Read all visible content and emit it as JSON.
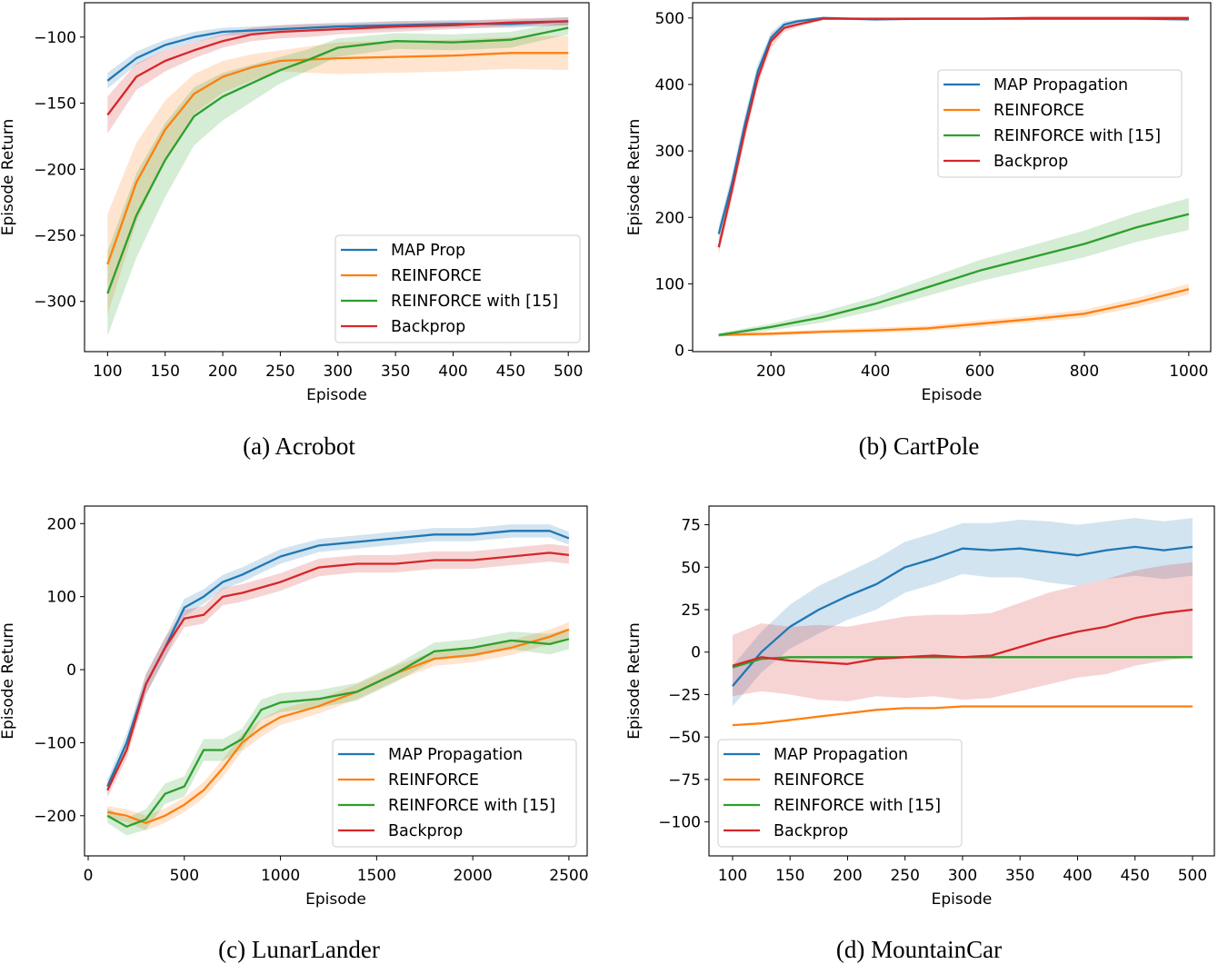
{
  "colors": {
    "MAP": "#1f77b4",
    "REINFORCE": "#ff7f0e",
    "R15": "#2ca02c",
    "Backprop": "#d62728"
  },
  "chart_data": [
    {
      "type": "line",
      "caption": "(a) Acrobot",
      "xlabel": "Episode",
      "ylabel": "Episode Return",
      "xlim": [
        80,
        518
      ],
      "ylim": [
        -338,
        -74
      ],
      "xticks": [
        100,
        150,
        200,
        250,
        300,
        350,
        400,
        450,
        500
      ],
      "yticks": [
        -300,
        -250,
        -200,
        -150,
        -100
      ],
      "grid": false,
      "legend_placement": "bottom-right",
      "series": [
        {
          "name": "MAP Prop",
          "key": "MAP",
          "x": [
            100,
            125,
            150,
            175,
            200,
            225,
            250,
            275,
            300,
            350,
            400,
            450,
            500
          ],
          "y": [
            -133,
            -116,
            -106,
            -100,
            -96,
            -95,
            -94,
            -93,
            -92,
            -91,
            -90,
            -90,
            -88
          ],
          "band": [
            6,
            5,
            4,
            4,
            3,
            3,
            3,
            3,
            3,
            3,
            3,
            3,
            3
          ]
        },
        {
          "name": "REINFORCE",
          "key": "REINFORCE",
          "x": [
            100,
            125,
            150,
            175,
            200,
            225,
            250,
            275,
            300,
            350,
            400,
            450,
            500
          ],
          "y": [
            -272,
            -210,
            -170,
            -143,
            -130,
            -123,
            -118,
            -117,
            -116,
            -115,
            -114,
            -112,
            -112
          ],
          "band": [
            38,
            30,
            22,
            15,
            12,
            10,
            8,
            10,
            12,
            12,
            12,
            12,
            13
          ]
        },
        {
          "name": "REINFORCE with [15]",
          "key": "R15",
          "x": [
            100,
            125,
            150,
            175,
            200,
            225,
            250,
            275,
            300,
            350,
            400,
            450,
            500
          ],
          "y": [
            -294,
            -235,
            -193,
            -160,
            -145,
            -135,
            -125,
            -117,
            -108,
            -103,
            -104,
            -102,
            -93
          ],
          "band": [
            32,
            32,
            28,
            22,
            18,
            14,
            10,
            8,
            7,
            6,
            6,
            6,
            5
          ]
        },
        {
          "name": "Backprop",
          "key": "Backprop",
          "x": [
            100,
            125,
            150,
            175,
            200,
            225,
            250,
            275,
            300,
            350,
            400,
            450,
            500
          ],
          "y": [
            -159,
            -130,
            -118,
            -110,
            -103,
            -98,
            -96,
            -95,
            -94,
            -92,
            -91,
            -89,
            -88
          ],
          "band": [
            14,
            10,
            8,
            6,
            5,
            5,
            5,
            5,
            4,
            4,
            3,
            3,
            3
          ]
        }
      ]
    },
    {
      "type": "line",
      "caption": "(b) CartPole",
      "xlabel": "Episode",
      "ylabel": "Episode Return",
      "xlim": [
        50,
        1042
      ],
      "ylim": [
        -2,
        523
      ],
      "xticks": [
        200,
        400,
        600,
        800,
        1000
      ],
      "yticks": [
        0,
        100,
        200,
        300,
        400,
        500
      ],
      "grid": false,
      "legend_placement": "upper-right",
      "series": [
        {
          "name": "MAP Propagation",
          "key": "MAP",
          "x": [
            100,
            125,
            150,
            175,
            200,
            225,
            250,
            300,
            400,
            500,
            600,
            700,
            800,
            900,
            1000
          ],
          "y": [
            175,
            250,
            340,
            420,
            470,
            490,
            495,
            500,
            498,
            499,
            499,
            499,
            499,
            499,
            498
          ],
          "band": [
            12,
            14,
            14,
            12,
            8,
            5,
            3,
            2,
            2,
            2,
            2,
            2,
            2,
            2,
            2
          ]
        },
        {
          "name": "REINFORCE",
          "key": "REINFORCE",
          "x": [
            100,
            200,
            300,
            400,
            500,
            600,
            700,
            800,
            900,
            1000
          ],
          "y": [
            23,
            25,
            28,
            30,
            33,
            40,
            47,
            55,
            72,
            92
          ],
          "band": [
            2,
            3,
            3,
            4,
            4,
            5,
            5,
            6,
            7,
            8
          ]
        },
        {
          "name": "REINFORCE with [15]",
          "key": "R15",
          "x": [
            100,
            200,
            300,
            400,
            500,
            600,
            700,
            800,
            900,
            1000
          ],
          "y": [
            23,
            35,
            50,
            70,
            95,
            120,
            140,
            160,
            185,
            205
          ],
          "band": [
            3,
            5,
            8,
            10,
            13,
            16,
            18,
            20,
            22,
            24
          ]
        },
        {
          "name": "Backprop",
          "key": "Backprop",
          "x": [
            100,
            125,
            150,
            175,
            200,
            225,
            250,
            300,
            400,
            500,
            600,
            700,
            800,
            900,
            1000
          ],
          "y": [
            155,
            240,
            330,
            410,
            465,
            485,
            490,
            499,
            499,
            499,
            499,
            500,
            500,
            500,
            500
          ],
          "band": [
            10,
            14,
            14,
            12,
            10,
            6,
            4,
            2,
            2,
            2,
            2,
            2,
            2,
            2,
            2
          ]
        }
      ]
    },
    {
      "type": "line",
      "caption": "(c) LunarLander",
      "xlabel": "Episode",
      "ylabel": "Episode Return",
      "xlim": [
        -19,
        2595
      ],
      "ylim": [
        -255,
        224
      ],
      "xticks": [
        0,
        500,
        1000,
        1500,
        2000,
        2500
      ],
      "yticks": [
        -200,
        -100,
        0,
        100,
        200
      ],
      "grid": false,
      "legend_placement": "bottom-right",
      "series": [
        {
          "name": "MAP Propagation",
          "key": "MAP",
          "x": [
            100,
            200,
            300,
            400,
            500,
            600,
            700,
            800,
            1000,
            1200,
            1400,
            1600,
            1800,
            2000,
            2200,
            2400,
            2500
          ],
          "y": [
            -160,
            -100,
            -20,
            30,
            85,
            100,
            120,
            130,
            155,
            170,
            175,
            180,
            185,
            185,
            190,
            190,
            180
          ],
          "band": [
            10,
            12,
            14,
            14,
            12,
            10,
            10,
            10,
            10,
            9,
            9,
            9,
            9,
            9,
            9,
            9,
            9
          ]
        },
        {
          "name": "REINFORCE",
          "key": "REINFORCE",
          "x": [
            100,
            200,
            300,
            400,
            500,
            600,
            700,
            800,
            900,
            1000,
            1200,
            1400,
            1600,
            1800,
            2000,
            2200,
            2400,
            2500
          ],
          "y": [
            -195,
            -200,
            -210,
            -200,
            -185,
            -165,
            -135,
            -100,
            -80,
            -65,
            -50,
            -30,
            -5,
            15,
            20,
            30,
            45,
            55
          ],
          "band": [
            8,
            9,
            10,
            10,
            10,
            11,
            12,
            12,
            12,
            11,
            10,
            10,
            10,
            10,
            10,
            10,
            10,
            10
          ]
        },
        {
          "name": "REINFORCE with [15]",
          "key": "R15",
          "x": [
            100,
            200,
            300,
            400,
            500,
            600,
            700,
            800,
            900,
            1000,
            1200,
            1400,
            1600,
            1800,
            2000,
            2200,
            2400,
            2500
          ],
          "y": [
            -200,
            -215,
            -205,
            -170,
            -160,
            -110,
            -110,
            -95,
            -55,
            -45,
            -40,
            -30,
            -5,
            25,
            30,
            40,
            35,
            42
          ],
          "band": [
            10,
            12,
            14,
            14,
            14,
            15,
            15,
            14,
            14,
            13,
            12,
            12,
            12,
            12,
            12,
            12,
            14,
            14
          ]
        },
        {
          "name": "Backprop",
          "key": "Backprop",
          "x": [
            100,
            200,
            300,
            400,
            500,
            600,
            700,
            800,
            1000,
            1200,
            1400,
            1600,
            1800,
            2000,
            2200,
            2400,
            2500
          ],
          "y": [
            -165,
            -110,
            -20,
            30,
            70,
            75,
            100,
            105,
            120,
            140,
            145,
            145,
            150,
            150,
            155,
            160,
            157
          ],
          "band": [
            10,
            12,
            14,
            14,
            12,
            12,
            12,
            12,
            12,
            12,
            12,
            12,
            12,
            12,
            12,
            12,
            12
          ]
        }
      ]
    },
    {
      "type": "line",
      "caption": "(d) MountainCar",
      "xlabel": "Episode",
      "ylabel": "Episode Return",
      "xlim": [
        79.5,
        519
      ],
      "ylim": [
        -120,
        86
      ],
      "xticks": [
        100,
        150,
        200,
        250,
        300,
        350,
        400,
        450,
        500
      ],
      "yticks": [
        -100,
        -75,
        -50,
        -25,
        0,
        25,
        50,
        75
      ],
      "grid": false,
      "legend_placement": "lower-left",
      "series": [
        {
          "name": "MAP Propagation",
          "key": "MAP",
          "x": [
            100,
            125,
            150,
            175,
            200,
            225,
            250,
            275,
            300,
            325,
            350,
            375,
            400,
            425,
            450,
            475,
            500
          ],
          "y": [
            -20,
            0,
            15,
            25,
            33,
            40,
            50,
            55,
            61,
            60,
            61,
            59,
            57,
            60,
            62,
            60,
            62
          ],
          "band": [
            12,
            12,
            13,
            14,
            14,
            15,
            15,
            15,
            15,
            16,
            17,
            18,
            18,
            17,
            17,
            17,
            17
          ]
        },
        {
          "name": "REINFORCE",
          "key": "REINFORCE",
          "x": [
            100,
            125,
            150,
            175,
            200,
            225,
            250,
            275,
            300,
            325,
            350,
            375,
            400,
            425,
            450,
            475,
            500
          ],
          "y": [
            -43,
            -42,
            -40,
            -38,
            -36,
            -34,
            -33,
            -33,
            -32,
            -32,
            -32,
            -32,
            -32,
            -32,
            -32,
            -32,
            -32
          ],
          "band": [
            0,
            0,
            0,
            0,
            0,
            0,
            0,
            0,
            0,
            0,
            0,
            0,
            0,
            0,
            0,
            0,
            0
          ]
        },
        {
          "name": "REINFORCE with [15]",
          "key": "R15",
          "x": [
            100,
            125,
            150,
            175,
            200,
            225,
            250,
            275,
            300,
            325,
            350,
            375,
            400,
            425,
            450,
            475,
            500
          ],
          "y": [
            -9,
            -4,
            -3,
            -3,
            -3,
            -3,
            -3,
            -3,
            -3,
            -3,
            -3,
            -3,
            -3,
            -3,
            -3,
            -3,
            -3
          ],
          "band": [
            0,
            0,
            0,
            0,
            0,
            0,
            0,
            0,
            0,
            0,
            0,
            0,
            0,
            0,
            0,
            0,
            0
          ]
        },
        {
          "name": "Backprop",
          "key": "Backprop",
          "x": [
            100,
            125,
            150,
            175,
            200,
            225,
            250,
            275,
            300,
            325,
            350,
            375,
            400,
            425,
            450,
            475,
            500
          ],
          "y": [
            -8,
            -3,
            -5,
            -6,
            -7,
            -4,
            -3,
            -2,
            -3,
            -2,
            3,
            8,
            12,
            15,
            20,
            23,
            25
          ],
          "band": [
            18,
            20,
            20,
            22,
            22,
            22,
            24,
            24,
            25,
            25,
            26,
            27,
            27,
            28,
            28,
            28,
            28
          ]
        }
      ]
    }
  ]
}
